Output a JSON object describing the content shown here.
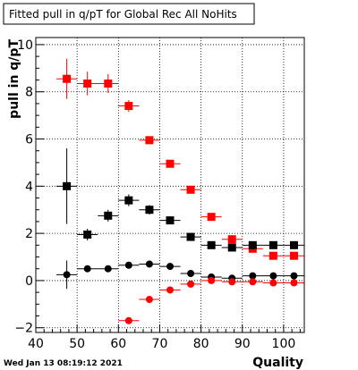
{
  "chart_data": {
    "type": "scatter",
    "title": "Fitted pull in q/pT for Global Rec All NoHits",
    "xlabel": "Quality",
    "ylabel": "pull in q/pT",
    "xlim": [
      40,
      105
    ],
    "ylim": [
      -2.2,
      10.3
    ],
    "x_ticks": [
      "40",
      "50",
      "60",
      "70",
      "80",
      "90",
      "100"
    ],
    "y_ticks": [
      "−2",
      "0",
      "2",
      "4",
      "6",
      "8",
      "10"
    ],
    "grid": true,
    "timestamp": "Wed Jan 13 08:19:12 2021",
    "series": [
      {
        "marker": "square",
        "color": "#ff0000",
        "points": [
          {
            "x": 47.5,
            "y": 8.55,
            "err": 0.85
          },
          {
            "x": 52.5,
            "y": 8.35,
            "err": 0.5
          },
          {
            "x": 57.5,
            "y": 8.35,
            "err": 0.4
          },
          {
            "x": 62.5,
            "y": 7.4,
            "err": 0.25
          },
          {
            "x": 67.5,
            "y": 5.95,
            "err": 0.12
          },
          {
            "x": 72.5,
            "y": 4.95,
            "err": 0.1
          },
          {
            "x": 77.5,
            "y": 3.85,
            "err": 0.1
          },
          {
            "x": 82.5,
            "y": 2.7,
            "err": 0.08
          },
          {
            "x": 87.5,
            "y": 1.75,
            "err": 0.06
          },
          {
            "x": 92.5,
            "y": 1.35,
            "err": 0.05
          },
          {
            "x": 97.5,
            "y": 1.05,
            "err": 0.05
          },
          {
            "x": 102.5,
            "y": 1.05,
            "err": 0.05
          }
        ]
      },
      {
        "marker": "square",
        "color": "#000000",
        "points": [
          {
            "x": 47.5,
            "y": 4.0,
            "err": 1.6
          },
          {
            "x": 52.5,
            "y": 1.95,
            "err": 0.25
          },
          {
            "x": 57.5,
            "y": 2.75,
            "err": 0.25
          },
          {
            "x": 62.5,
            "y": 3.4,
            "err": 0.25
          },
          {
            "x": 67.5,
            "y": 3.0,
            "err": 0.2
          },
          {
            "x": 72.5,
            "y": 2.55,
            "err": 0.12
          },
          {
            "x": 77.5,
            "y": 1.85,
            "err": 0.1
          },
          {
            "x": 82.5,
            "y": 1.5,
            "err": 0.08
          },
          {
            "x": 87.5,
            "y": 1.4,
            "err": 0.07
          },
          {
            "x": 92.5,
            "y": 1.5,
            "err": 0.07
          },
          {
            "x": 97.5,
            "y": 1.5,
            "err": 0.07
          },
          {
            "x": 102.5,
            "y": 1.5,
            "err": 0.07
          }
        ]
      },
      {
        "marker": "circle",
        "color": "#000000",
        "points": [
          {
            "x": 47.5,
            "y": 0.25,
            "err": 0.6
          },
          {
            "x": 52.5,
            "y": 0.5,
            "err": 0.12
          },
          {
            "x": 57.5,
            "y": 0.5,
            "err": 0.1
          },
          {
            "x": 62.5,
            "y": 0.65,
            "err": 0.08
          },
          {
            "x": 67.5,
            "y": 0.7,
            "err": 0.06
          },
          {
            "x": 72.5,
            "y": 0.6,
            "err": 0.05
          },
          {
            "x": 77.5,
            "y": 0.3,
            "err": 0.04
          },
          {
            "x": 82.5,
            "y": 0.15,
            "err": 0.03
          },
          {
            "x": 87.5,
            "y": 0.1,
            "err": 0.03
          },
          {
            "x": 92.5,
            "y": 0.2,
            "err": 0.03
          },
          {
            "x": 97.5,
            "y": 0.2,
            "err": 0.03
          },
          {
            "x": 102.5,
            "y": 0.2,
            "err": 0.03
          }
        ]
      },
      {
        "marker": "circle",
        "color": "#ff0000",
        "points": [
          {
            "x": 62.5,
            "y": -1.7,
            "err": 0.1
          },
          {
            "x": 67.5,
            "y": -0.8,
            "err": 0.07
          },
          {
            "x": 72.5,
            "y": -0.4,
            "err": 0.05
          },
          {
            "x": 77.5,
            "y": -0.15,
            "err": 0.04
          },
          {
            "x": 82.5,
            "y": 0.0,
            "err": 0.03
          },
          {
            "x": 87.5,
            "y": -0.05,
            "err": 0.03
          },
          {
            "x": 92.5,
            "y": -0.05,
            "err": 0.03
          },
          {
            "x": 97.5,
            "y": -0.1,
            "err": 0.03
          },
          {
            "x": 102.5,
            "y": -0.1,
            "err": 0.03
          }
        ]
      }
    ]
  }
}
